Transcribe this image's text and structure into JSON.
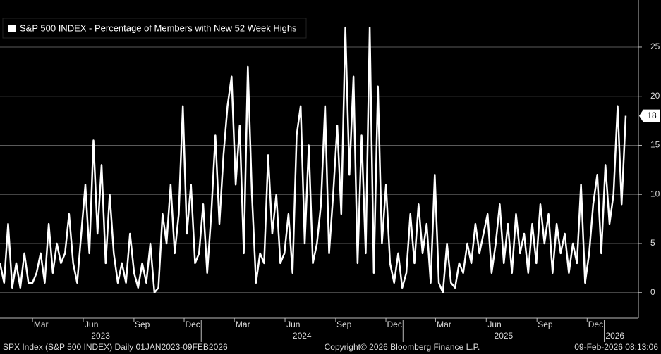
{
  "chart_data": {
    "type": "line",
    "title": "S&P 500 INDEX - Percentage of Members with New 52 Week Highs",
    "xlim": [
      "2023-01-01",
      "2026-02-09"
    ],
    "ylim": [
      -2.6,
      29.8
    ],
    "yticks": [
      0,
      5,
      10,
      15,
      20,
      25
    ],
    "grid": true,
    "xticks": [
      {
        "value": "2023-03",
        "label": "Mar"
      },
      {
        "value": "2023-06",
        "label": "Jun"
      },
      {
        "value": "2023-09",
        "label": "Sep"
      },
      {
        "value": "2023-12",
        "label": "Dec"
      },
      {
        "value": "2024-03",
        "label": "Mar"
      },
      {
        "value": "2024-06",
        "label": "Jun"
      },
      {
        "value": "2024-09",
        "label": "Sep"
      },
      {
        "value": "2024-12",
        "label": "Dec"
      },
      {
        "value": "2025-03",
        "label": "Mar"
      },
      {
        "value": "2025-06",
        "label": "Jun"
      },
      {
        "value": "2025-09",
        "label": "Sep"
      },
      {
        "value": "2025-12",
        "label": "Dec"
      }
    ],
    "year_labels": [
      2023,
      2024,
      2025,
      2026
    ],
    "series": [
      {
        "name": "S&P 500 INDEX - Percentage of Members with New 52 Week Highs",
        "color": "#ffffff",
        "values": [
          3,
          1,
          7,
          0.5,
          3,
          0.5,
          4,
          1,
          1,
          2,
          4,
          1,
          7,
          2,
          5,
          3,
          4,
          8,
          3,
          1,
          6,
          11,
          4,
          15.5,
          6,
          13,
          3,
          10,
          4,
          1,
          3,
          1,
          6,
          2,
          0.5,
          3,
          1,
          5,
          0,
          0.5,
          8,
          5,
          11,
          4,
          8,
          19,
          6,
          11,
          3,
          4,
          9,
          2,
          8,
          16,
          7,
          14,
          19,
          22,
          11,
          17,
          4,
          23,
          10,
          1,
          4,
          3,
          14,
          6,
          10,
          3,
          4,
          8,
          2,
          16,
          19,
          5,
          15,
          3,
          5,
          9,
          19,
          4,
          10,
          17,
          8,
          27,
          12,
          22,
          3,
          16,
          4,
          27,
          2,
          21,
          5,
          11,
          3,
          1,
          4,
          0.5,
          2,
          8,
          3,
          9,
          4,
          7,
          1,
          12,
          1,
          0,
          5,
          1,
          0.5,
          3,
          2,
          5,
          3,
          7,
          4,
          6,
          8,
          2,
          5,
          9,
          3,
          7,
          2,
          8,
          4,
          6,
          2,
          7,
          3,
          9,
          5,
          8,
          2,
          7,
          4,
          6,
          2,
          5,
          3,
          11,
          1,
          4,
          9,
          12,
          4,
          13,
          7,
          10,
          19,
          9,
          18
        ]
      }
    ],
    "footer": {
      "left": "SPX Index (S&P 500 INDEX) Daily 01JAN2023-09FEB2026",
      "center": "Copyright© 2026 Bloomberg Finance L.P.",
      "right": "09-Feb-2026 08:13:06"
    }
  }
}
